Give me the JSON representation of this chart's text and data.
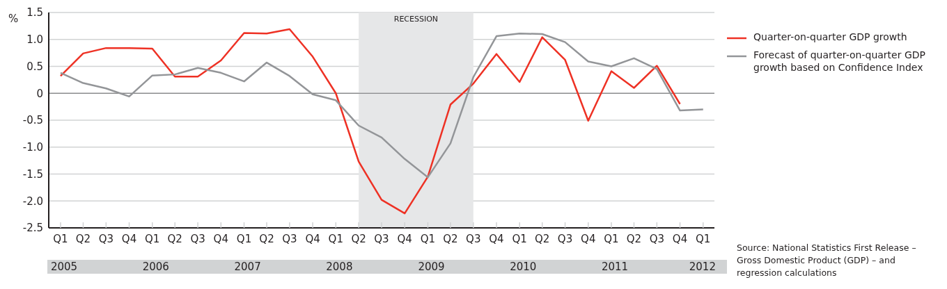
{
  "chart_data": {
    "type": "line",
    "ylabel": "%",
    "x": [
      "2005-01",
      "2005-04",
      "2005-07",
      "2005-10",
      "2006-01",
      "2006-04",
      "2006-07",
      "2006-10",
      "2007-01",
      "2007-04",
      "2007-07",
      "2007-10",
      "2008-01",
      "2008-04",
      "2008-07",
      "2008-10",
      "2009-01",
      "2009-04",
      "2009-07",
      "2009-10",
      "2010-01",
      "2010-04",
      "2010-07",
      "2010-10",
      "2011-01",
      "2011-04",
      "2011-07",
      "2011-10",
      "2012-01"
    ],
    "xlim": [
      "2004-11-15",
      "2012-02-15"
    ],
    "xticks": [
      {
        "value": "2005-01",
        "label": "Q1"
      },
      {
        "value": "2005-04",
        "label": "Q2"
      },
      {
        "value": "2005-07",
        "label": "Q3"
      },
      {
        "value": "2005-10",
        "label": "Q4"
      },
      {
        "value": "2006-01",
        "label": "Q1"
      },
      {
        "value": "2006-04",
        "label": "Q2"
      },
      {
        "value": "2006-07",
        "label": "Q3"
      },
      {
        "value": "2006-10",
        "label": "Q4"
      },
      {
        "value": "2007-01",
        "label": "Q1"
      },
      {
        "value": "2007-04",
        "label": "Q2"
      },
      {
        "value": "2007-07",
        "label": "Q3"
      },
      {
        "value": "2007-10",
        "label": "Q4"
      },
      {
        "value": "2008-01",
        "label": "Q1"
      },
      {
        "value": "2008-04",
        "label": "Q2"
      },
      {
        "value": "2008-07",
        "label": "Q3"
      },
      {
        "value": "2008-10",
        "label": "Q4"
      },
      {
        "value": "2009-01",
        "label": "Q1"
      },
      {
        "value": "2009-04",
        "label": "Q2"
      },
      {
        "value": "2009-07",
        "label": "Q3"
      },
      {
        "value": "2009-10",
        "label": "Q4"
      },
      {
        "value": "2010-01",
        "label": "Q1"
      },
      {
        "value": "2010-04",
        "label": "Q2"
      },
      {
        "value": "2010-07",
        "label": "Q3"
      },
      {
        "value": "2010-10",
        "label": "Q4"
      },
      {
        "value": "2011-01",
        "label": "Q1"
      },
      {
        "value": "2011-04",
        "label": "Q2"
      },
      {
        "value": "2011-07",
        "label": "Q3"
      },
      {
        "value": "2011-10",
        "label": "Q4"
      },
      {
        "value": "2012-01",
        "label": "Q1"
      }
    ],
    "series": [
      {
        "name": "Quarter-on-quarter GDP growth",
        "color": "#ee3124",
        "values": [
          0.32,
          0.74,
          0.84,
          0.84,
          0.83,
          0.31,
          0.31,
          0.61,
          1.12,
          1.11,
          1.19,
          0.68,
          0.0,
          -1.27,
          -1.98,
          -2.23,
          -1.55,
          -0.21,
          0.18,
          0.73,
          0.21,
          1.04,
          0.62,
          -0.51,
          0.41,
          0.1,
          0.51,
          -0.2,
          null
        ]
      },
      {
        "name": "Forecast of quarter-on-quarter GDP growth based on Confidence Index",
        "color": "#939598",
        "values": [
          0.38,
          0.19,
          0.09,
          -0.06,
          0.33,
          0.35,
          0.47,
          0.38,
          0.22,
          0.57,
          0.32,
          -0.02,
          -0.13,
          -0.6,
          -0.82,
          -1.22,
          -1.56,
          -0.93,
          0.3,
          1.06,
          1.11,
          1.1,
          0.95,
          0.59,
          0.5,
          0.65,
          0.45,
          -0.32,
          -0.3
        ]
      }
    ],
    "ylim": [
      -2.5,
      1.5
    ],
    "yticks": [
      -2.5,
      {
        "value": -2,
        "label": "-2.0"
      },
      -1.5,
      {
        "value": -1,
        "label": "-1.0"
      },
      -0.5,
      0,
      0.5,
      {
        "value": 1,
        "label": "1.0"
      },
      1.5
    ],
    "grid": "y",
    "legend": "right",
    "marker": "none",
    "line_style": "solid",
    "bands": [
      {
        "axis": "x",
        "from": "2008-04",
        "to": "2009-07",
        "label": "RECESSION",
        "color": "#e6e7e8"
      }
    ],
    "ref_lines": [
      {
        "axis": "y",
        "value": 0,
        "color": "#6d6e71"
      }
    ],
    "annotations": [
      "Source: National Statistics First Release – Gross Domestic Product (GDP) – and regression calculations",
      "2005",
      "2006",
      "2007",
      "2008",
      "2009",
      "2010",
      "2011",
      "2012"
    ]
  }
}
